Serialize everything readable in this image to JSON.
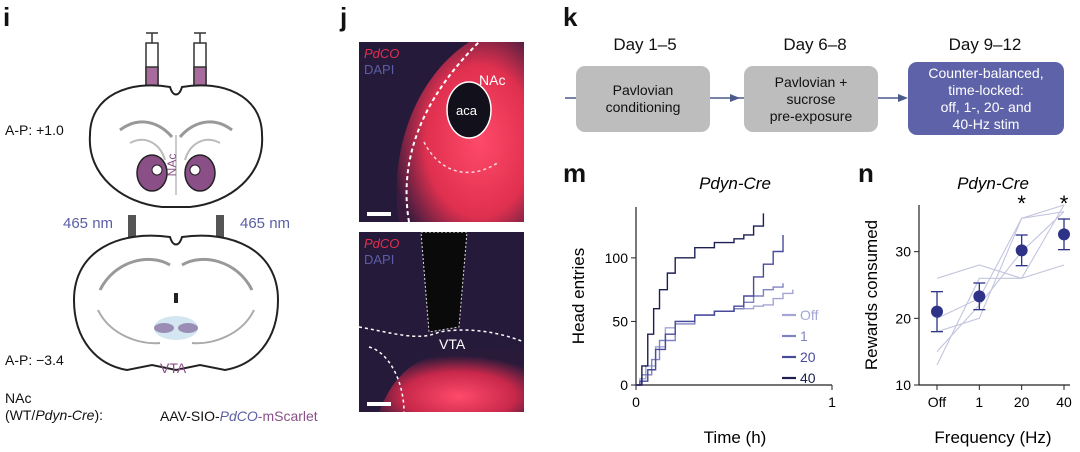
{
  "panel_i": {
    "label": "i",
    "ap_top": "A-P: +1.0",
    "ap_bottom": "A-P: −3.4",
    "wavelength_left": "465 nm",
    "wavelength_right": "465 nm",
    "nac_label": "NAc",
    "vta_label": "VTA",
    "genotype_line1": "NAc",
    "genotype_line2_prefix": "(WT/",
    "genotype_line2_italic": "Pdyn-Cre",
    "genotype_line2_suffix": "):",
    "virus_prefix": "AAV-SIO-",
    "virus_italic": "PdCO",
    "virus_suffix": "-mScarlet"
  },
  "panel_j": {
    "label": "j",
    "top_stain1": "PdCO",
    "top_stain2": "DAPI",
    "top_region": "NAc",
    "top_subregion": "aca",
    "bottom_stain1": "PdCO",
    "bottom_stain2": "DAPI",
    "bottom_region": "VTA"
  },
  "panel_k": {
    "label": "k",
    "days": [
      "Day 1–5",
      "Day 6–8",
      "Day 9–12"
    ],
    "box1": [
      "Pavlovian",
      "conditioning"
    ],
    "box2": [
      "Pavlovian +",
      "sucrose",
      "pre-exposure"
    ],
    "box3": [
      "Counter-balanced,",
      "time-locked:",
      "off, 1-, 20- and",
      "40-Hz stim"
    ],
    "colors": {
      "gray_box": "#bdbdbd",
      "accent_box": "#5e62a8"
    }
  },
  "panel_m": {
    "label": "m",
    "title": "Pdyn-Cre",
    "chart_data": {
      "type": "line",
      "title": "Pdyn-Cre",
      "xlabel": "Time (h)",
      "ylabel": "Head entries",
      "xlim": [
        0,
        1
      ],
      "ylim": [
        0,
        140
      ],
      "xticks": [
        "0",
        "1"
      ],
      "yticks": [
        "0",
        "50",
        "100"
      ],
      "legend_position": "bottom-right",
      "series": [
        {
          "name": "Off",
          "color": "#a3a6d4",
          "x": [
            0,
            0.02,
            0.05,
            0.1,
            0.15,
            0.2,
            0.3,
            0.4,
            0.5,
            0.6,
            0.65,
            0.7,
            0.75,
            0.8
          ],
          "y": [
            0,
            5,
            15,
            30,
            45,
            50,
            55,
            58,
            60,
            62,
            63,
            68,
            72,
            75
          ]
        },
        {
          "name": "1",
          "color": "#8083c2",
          "x": [
            0,
            0.03,
            0.08,
            0.12,
            0.2,
            0.3,
            0.4,
            0.5,
            0.55,
            0.6,
            0.65,
            0.7,
            0.75
          ],
          "y": [
            0,
            8,
            20,
            35,
            48,
            55,
            58,
            60,
            65,
            70,
            75,
            77,
            80
          ]
        },
        {
          "name": "20",
          "color": "#484b9a",
          "x": [
            0,
            0.02,
            0.06,
            0.1,
            0.15,
            0.2,
            0.3,
            0.4,
            0.5,
            0.55,
            0.6,
            0.65,
            0.7,
            0.75
          ],
          "y": [
            0,
            3,
            12,
            28,
            40,
            50,
            55,
            58,
            62,
            70,
            85,
            95,
            105,
            118
          ]
        },
        {
          "name": "40",
          "color": "#1c1f52",
          "x": [
            0,
            0.03,
            0.06,
            0.09,
            0.12,
            0.16,
            0.2,
            0.3,
            0.4,
            0.5,
            0.55,
            0.6,
            0.65
          ],
          "y": [
            0,
            15,
            40,
            60,
            75,
            88,
            100,
            108,
            112,
            115,
            118,
            125,
            135
          ]
        }
      ]
    }
  },
  "panel_n": {
    "label": "n",
    "title": "Pdyn-Cre",
    "chart_data": {
      "type": "scatter",
      "title": "Pdyn-Cre",
      "xlabel": "Frequency (Hz)",
      "ylabel": "Rewards consumed",
      "categories": [
        "Off",
        "1",
        "20",
        "40"
      ],
      "ylim": [
        10,
        37
      ],
      "yticks": [
        "10",
        "20",
        "30"
      ],
      "means": [
        21,
        23.3,
        30.2,
        32.6
      ],
      "errors": [
        3,
        2,
        2.3,
        2.3
      ],
      "significance": [
        "",
        "",
        "*",
        "*"
      ],
      "individual_lines": [
        [
          13,
          26,
          26,
          37
        ],
        [
          20,
          23,
          35,
          37
        ],
        [
          26,
          28,
          26,
          28
        ],
        [
          15,
          22,
          30,
          36
        ],
        [
          18,
          20,
          35,
          36
        ]
      ],
      "colors": {
        "mean": "#2e3388",
        "individual": "#c3c5df",
        "error": "#2e3388"
      }
    }
  }
}
